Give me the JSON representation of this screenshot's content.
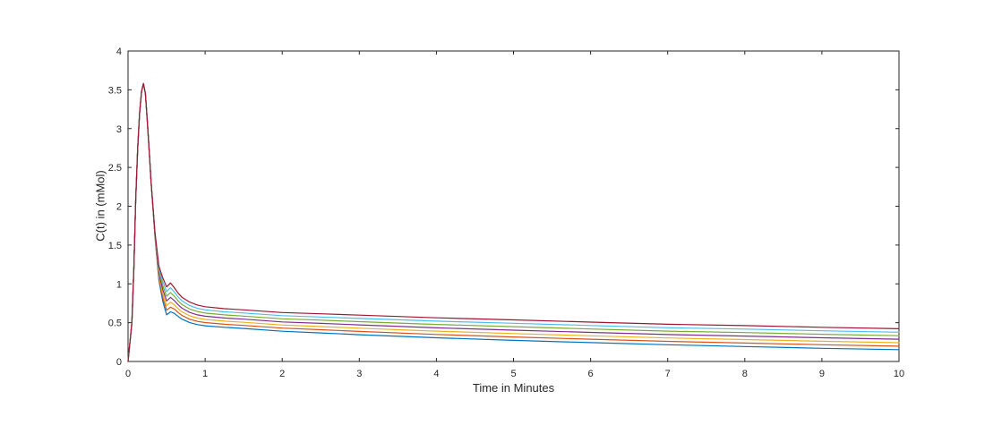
{
  "figure": {
    "background": "#ffffff",
    "axis_color": "#262626",
    "text_color": "#262626"
  },
  "chart_data": {
    "type": "line",
    "title": "",
    "xlabel": "Time in Minutes",
    "ylabel": "C(t) in (mMol)",
    "xlim": [
      0,
      10
    ],
    "ylim": [
      0,
      4
    ],
    "grid": false,
    "legend": "none",
    "box": true,
    "x_ticks": [
      0,
      1,
      2,
      3,
      4,
      5,
      6,
      7,
      8,
      9,
      10
    ],
    "x_tick_labels": [
      "0",
      "1",
      "2",
      "3",
      "4",
      "5",
      "6",
      "7",
      "8",
      "9",
      "10"
    ],
    "y_ticks": [
      0,
      0.5,
      1,
      1.5,
      2,
      2.5,
      3,
      3.5,
      4
    ],
    "y_tick_labels": [
      "0",
      "0.5",
      "1",
      "1.5",
      "2",
      "2.5",
      "3",
      "3.5",
      "4"
    ],
    "x": [
      0,
      0.05,
      0.075,
      0.1,
      0.125,
      0.15,
      0.175,
      0.2,
      0.225,
      0.25,
      0.275,
      0.3,
      0.35,
      0.4,
      0.45,
      0.5,
      0.55,
      0.6,
      0.65,
      0.7,
      0.8,
      0.9,
      1,
      1.25,
      1.5,
      2,
      2.5,
      3,
      4,
      5,
      6,
      7,
      8,
      9,
      10
    ],
    "series": [
      {
        "name": "series-1",
        "color": "#0072BD",
        "values": [
          0,
          0.5,
          1.2,
          2.1,
          2.75,
          3.2,
          3.48,
          3.58,
          3.45,
          3.1,
          2.7,
          2.3,
          1.6,
          1.05,
          0.78,
          0.6,
          0.64,
          0.62,
          0.58,
          0.545,
          0.5,
          0.475,
          0.46,
          0.44,
          0.425,
          0.39,
          0.368,
          0.345,
          0.305,
          0.272,
          0.243,
          0.215,
          0.192,
          0.17,
          0.152
        ]
      },
      {
        "name": "series-2",
        "color": "#D95319",
        "values": [
          0,
          0.5,
          1.2,
          2.1,
          2.75,
          3.2,
          3.48,
          3.58,
          3.45,
          3.1,
          2.7,
          2.3,
          1.61,
          1.08,
          0.83,
          0.66,
          0.7,
          0.675,
          0.63,
          0.592,
          0.544,
          0.517,
          0.501,
          0.48,
          0.465,
          0.43,
          0.409,
          0.387,
          0.348,
          0.316,
          0.287,
          0.259,
          0.237,
          0.215,
          0.197
        ]
      },
      {
        "name": "series-3",
        "color": "#EDB120",
        "values": [
          0,
          0.5,
          1.2,
          2.1,
          2.75,
          3.2,
          3.48,
          3.58,
          3.45,
          3.1,
          2.7,
          2.3,
          1.62,
          1.11,
          0.88,
          0.72,
          0.764,
          0.73,
          0.68,
          0.639,
          0.588,
          0.559,
          0.542,
          0.52,
          0.505,
          0.47,
          0.45,
          0.429,
          0.391,
          0.36,
          0.331,
          0.303,
          0.282,
          0.26,
          0.242
        ]
      },
      {
        "name": "series-4",
        "color": "#7E2F8E",
        "values": [
          0,
          0.5,
          1.2,
          2.1,
          2.75,
          3.2,
          3.48,
          3.58,
          3.45,
          3.1,
          2.7,
          2.3,
          1.63,
          1.14,
          0.93,
          0.78,
          0.826,
          0.785,
          0.73,
          0.686,
          0.632,
          0.601,
          0.583,
          0.56,
          0.545,
          0.51,
          0.491,
          0.471,
          0.434,
          0.404,
          0.375,
          0.347,
          0.327,
          0.305,
          0.287
        ]
      },
      {
        "name": "series-5",
        "color": "#77AC30",
        "values": [
          0,
          0.5,
          1.2,
          2.1,
          2.75,
          3.2,
          3.48,
          3.58,
          3.45,
          3.1,
          2.7,
          2.3,
          1.64,
          1.17,
          0.98,
          0.84,
          0.888,
          0.84,
          0.78,
          0.733,
          0.676,
          0.643,
          0.624,
          0.6,
          0.585,
          0.55,
          0.532,
          0.513,
          0.477,
          0.448,
          0.419,
          0.391,
          0.372,
          0.35,
          0.332
        ]
      },
      {
        "name": "series-6",
        "color": "#4DBEEE",
        "values": [
          0,
          0.5,
          1.2,
          2.1,
          2.75,
          3.2,
          3.48,
          3.58,
          3.45,
          3.1,
          2.7,
          2.3,
          1.65,
          1.2,
          1.03,
          0.9,
          0.95,
          0.895,
          0.83,
          0.78,
          0.72,
          0.685,
          0.665,
          0.64,
          0.625,
          0.59,
          0.573,
          0.555,
          0.52,
          0.492,
          0.463,
          0.435,
          0.417,
          0.395,
          0.377
        ]
      },
      {
        "name": "series-7",
        "color": "#A2142F",
        "values": [
          0,
          0.5,
          1.2,
          2.1,
          2.75,
          3.2,
          3.48,
          3.58,
          3.45,
          3.1,
          2.7,
          2.3,
          1.66,
          1.23,
          1.08,
          0.96,
          1.012,
          0.95,
          0.88,
          0.827,
          0.764,
          0.727,
          0.706,
          0.68,
          0.665,
          0.63,
          0.614,
          0.597,
          0.563,
          0.536,
          0.507,
          0.479,
          0.462,
          0.44,
          0.422
        ]
      }
    ]
  }
}
